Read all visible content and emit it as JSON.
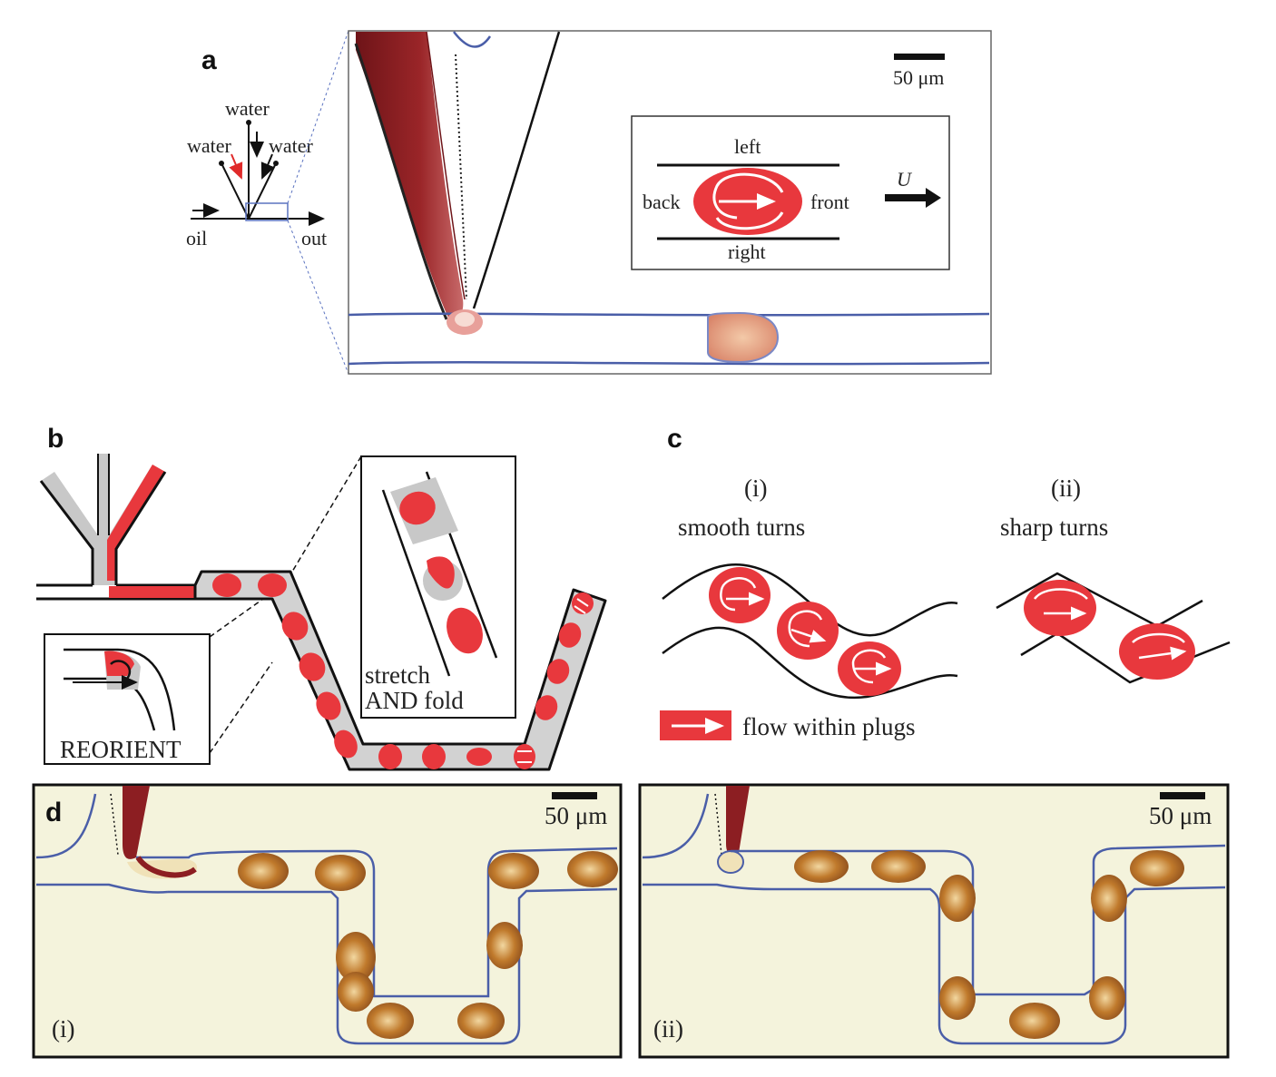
{
  "panels": {
    "a": {
      "letter": "a",
      "schematic": {
        "water_top": "water",
        "water_left": "water",
        "water_right": "water",
        "oil": "oil",
        "out": "out"
      },
      "scale_bar": "50 μm",
      "inset": {
        "left": "left",
        "right": "right",
        "back": "back",
        "front": "front",
        "velocity": "U"
      }
    },
    "b": {
      "letter": "b",
      "reorient_label": "REORIENT",
      "stretch_label_1": "stretch",
      "stretch_label_2": "AND fold"
    },
    "c": {
      "letter": "c",
      "i_numeral": "(i)",
      "i_title": "smooth turns",
      "ii_numeral": "(ii)",
      "ii_title": "sharp turns",
      "legend": "flow within plugs"
    },
    "d": {
      "letter": "d",
      "i_label": "(i)",
      "ii_label": "(ii)",
      "scale_bar_i": "50 μm",
      "scale_bar_ii": "50 μm"
    }
  },
  "colors": {
    "plug_red": "#e8383d",
    "fluid_red": "#8c1e22",
    "gray": "#c8c8c8",
    "channel_blue": "#4a5ea8",
    "photo_bg": "#f4f3dc",
    "plug_orange": "#c9812f"
  }
}
